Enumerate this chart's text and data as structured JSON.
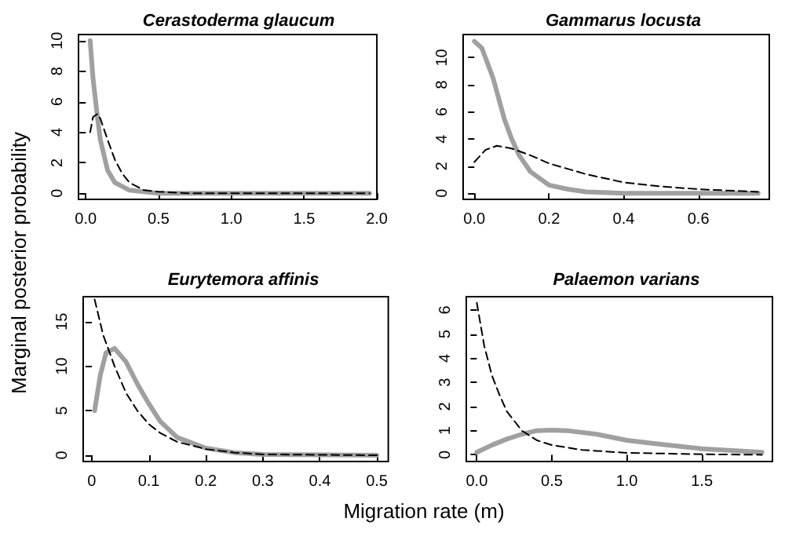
{
  "chart_data": [
    {
      "type": "line",
      "title": "Cerastoderma glaucum",
      "ylabel": "Marginal posterior probability",
      "xlim": [
        -0.05,
        2.0
      ],
      "ylim": [
        -0.4,
        10.4
      ],
      "xticks": [
        {
          "value": 0,
          "label": "0.0"
        },
        {
          "value": 0.5,
          "label": "0.5"
        },
        {
          "value": 1,
          "label": "1.0"
        },
        {
          "value": 1.5,
          "label": "1.5"
        },
        {
          "value": 2,
          "label": "2.0"
        }
      ],
      "yticks": [
        0,
        2,
        4,
        6,
        8,
        10
      ],
      "grid": false,
      "marker": "none",
      "series": [
        {
          "color": "#a0a0a0",
          "line_style": "solid",
          "x": [
            0.03,
            0.05,
            0.08,
            0.1,
            0.15,
            0.2,
            0.3,
            0.4,
            0.5,
            1.95
          ],
          "values": [
            10,
            7.5,
            5,
            3.5,
            1.5,
            0.7,
            0.2,
            0.1,
            0,
            0
          ]
        },
        {
          "color": "#000000",
          "line_style": "dashed",
          "x": [
            0.03,
            0.05,
            0.08,
            0.1,
            0.15,
            0.2,
            0.25,
            0.3,
            0.4,
            0.5,
            0.7,
            1.95
          ],
          "values": [
            4,
            5,
            5.2,
            4.9,
            3.5,
            2.2,
            1.3,
            0.7,
            0.2,
            0.1,
            0,
            0
          ]
        }
      ]
    },
    {
      "type": "line",
      "title": "Gammarus locusta",
      "xlim": [
        -0.03,
        0.79
      ],
      "ylim": [
        -0.45,
        11.7
      ],
      "xticks": [
        {
          "value": 0,
          "label": "0.0"
        },
        {
          "value": 0.2,
          "label": "0.2"
        },
        {
          "value": 0.4,
          "label": "0.4"
        },
        {
          "value": 0.6,
          "label": "0.6"
        }
      ],
      "yticks": [
        0,
        2,
        4,
        6,
        8,
        10
      ],
      "grid": false,
      "marker": "none",
      "series": [
        {
          "color": "#a0a0a0",
          "line_style": "solid",
          "x": [
            0,
            0.02,
            0.05,
            0.08,
            0.1,
            0.12,
            0.15,
            0.2,
            0.25,
            0.3,
            0.4,
            0.76
          ],
          "values": [
            11.2,
            10.7,
            8.5,
            5.5,
            4,
            2.8,
            1.6,
            0.6,
            0.3,
            0.1,
            0,
            0
          ]
        },
        {
          "color": "#000000",
          "line_style": "dashed",
          "x": [
            0,
            0.03,
            0.06,
            0.1,
            0.15,
            0.2,
            0.3,
            0.4,
            0.5,
            0.6,
            0.76
          ],
          "values": [
            2.3,
            3.2,
            3.5,
            3.3,
            2.8,
            2.2,
            1.4,
            0.8,
            0.5,
            0.3,
            0.1
          ]
        }
      ]
    },
    {
      "type": "line",
      "title": "Eurytemora affinis",
      "xlabel": "Migration rate (m)",
      "xlim": [
        -0.015,
        0.52
      ],
      "ylim": [
        -0.7,
        17.8
      ],
      "xticks": [
        0,
        0.1,
        0.2,
        0.3,
        0.4,
        0.5
      ],
      "yticks": [
        0,
        5,
        10,
        15
      ],
      "grid": false,
      "marker": "none",
      "series": [
        {
          "color": "#a0a0a0",
          "line_style": "solid",
          "x": [
            0.005,
            0.015,
            0.025,
            0.04,
            0.06,
            0.08,
            0.1,
            0.12,
            0.15,
            0.2,
            0.25,
            0.3,
            0.5
          ],
          "values": [
            5,
            9,
            11.5,
            12,
            10.5,
            8,
            5.8,
            3.8,
            2,
            0.8,
            0.3,
            0.1,
            0
          ]
        },
        {
          "color": "#000000",
          "line_style": "dashed",
          "x": [
            0.005,
            0.02,
            0.04,
            0.06,
            0.08,
            0.1,
            0.12,
            0.15,
            0.2,
            0.25,
            0.3,
            0.5
          ],
          "values": [
            17.5,
            13.5,
            10,
            7,
            5,
            3.5,
            2.5,
            1.5,
            0.7,
            0.3,
            0.1,
            0
          ]
        }
      ]
    },
    {
      "type": "line",
      "title": "Palaemon varians",
      "xlim": [
        -0.07,
        1.97
      ],
      "ylim": [
        -0.28,
        6.55
      ],
      "xticks": [
        {
          "value": 0,
          "label": "0.0"
        },
        {
          "value": 0.5,
          "label": "0.5"
        },
        {
          "value": 1,
          "label": "1.0"
        },
        {
          "value": 1.5,
          "label": "1.5"
        }
      ],
      "yticks": [
        0,
        1,
        2,
        3,
        4,
        5,
        6
      ],
      "grid": false,
      "marker": "none",
      "series": [
        {
          "color": "#a0a0a0",
          "line_style": "solid",
          "x": [
            0,
            0.1,
            0.2,
            0.3,
            0.4,
            0.5,
            0.6,
            0.8,
            1,
            1.2,
            1.5,
            1.9
          ],
          "values": [
            0.1,
            0.4,
            0.65,
            0.85,
            1,
            1.02,
            1,
            0.85,
            0.6,
            0.45,
            0.25,
            0.1
          ]
        },
        {
          "color": "#000000",
          "line_style": "dashed",
          "x": [
            0,
            0.05,
            0.1,
            0.15,
            0.2,
            0.3,
            0.4,
            0.5,
            0.7,
            1,
            1.5,
            1.9
          ],
          "values": [
            6.3,
            4.5,
            3.3,
            2.5,
            1.8,
            1,
            0.6,
            0.4,
            0.2,
            0.08,
            0.02,
            0
          ]
        }
      ]
    }
  ]
}
